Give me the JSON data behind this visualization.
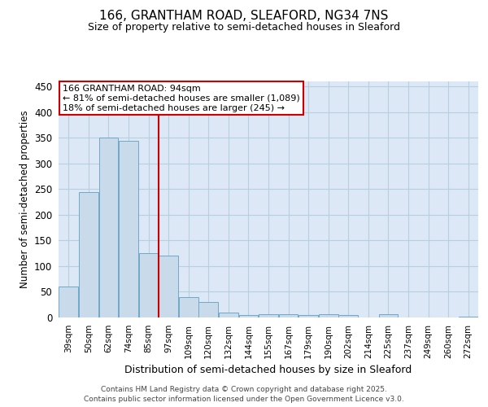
{
  "title_line1": "166, GRANTHAM ROAD, SLEAFORD, NG34 7NS",
  "title_line2": "Size of property relative to semi-detached houses in Sleaford",
  "xlabel": "Distribution of semi-detached houses by size in Sleaford",
  "ylabel": "Number of semi-detached properties",
  "categories": [
    "39sqm",
    "50sqm",
    "62sqm",
    "74sqm",
    "85sqm",
    "97sqm",
    "109sqm",
    "120sqm",
    "132sqm",
    "144sqm",
    "155sqm",
    "167sqm",
    "179sqm",
    "190sqm",
    "202sqm",
    "214sqm",
    "225sqm",
    "237sqm",
    "249sqm",
    "260sqm",
    "272sqm"
  ],
  "values": [
    60,
    245,
    350,
    345,
    125,
    120,
    40,
    30,
    10,
    5,
    6,
    7,
    5,
    7,
    5,
    0,
    7,
    0,
    0,
    0,
    2
  ],
  "bar_color": "#c9daea",
  "bar_edge_color": "#6ea8c8",
  "vline_color": "#cc0000",
  "vline_index": 5,
  "annotation_title": "166 GRANTHAM ROAD: 94sqm",
  "annotation_line1": "← 81% of semi-detached houses are smaller (1,089)",
  "annotation_line2": "18% of semi-detached houses are larger (245) →",
  "annotation_box_color": "#cc0000",
  "ylim": [
    0,
    460
  ],
  "yticks": [
    0,
    50,
    100,
    150,
    200,
    250,
    300,
    350,
    400,
    450
  ],
  "bg_color": "#dce8f5",
  "grid_color": "#b8cfe0",
  "footer_line1": "Contains HM Land Registry data © Crown copyright and database right 2025.",
  "footer_line2": "Contains public sector information licensed under the Open Government Licence v3.0."
}
